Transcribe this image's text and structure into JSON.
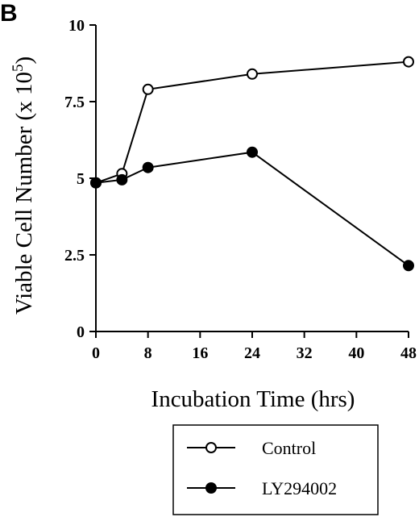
{
  "panel_label": "B",
  "chart_data": {
    "type": "line",
    "title": "",
    "xlabel": "Incubation Time (hrs)",
    "ylabel": "Viable Cell Number (x 10",
    "ylabel_sup": "5",
    "ylabel_tail": ")",
    "xlim": [
      0,
      48
    ],
    "ylim": [
      0,
      10
    ],
    "xticks": [
      0,
      8,
      16,
      24,
      32,
      40,
      48
    ],
    "xtick_labels": [
      "0",
      "8",
      "16",
      "24",
      "32",
      "40",
      "48"
    ],
    "yticks": [
      0,
      2.5,
      5,
      7.5,
      10
    ],
    "ytick_labels": [
      "0",
      "2.5",
      "5",
      "7.5",
      "10"
    ],
    "grid": false,
    "legend_position": "bottom-center",
    "series": [
      {
        "name": "Control",
        "marker": "open-circle",
        "x": [
          0,
          4,
          8,
          24,
          48
        ],
        "y": [
          4.85,
          5.15,
          7.9,
          8.4,
          8.8
        ]
      },
      {
        "name": "LY294002",
        "marker": "filled-circle",
        "x": [
          0,
          4,
          8,
          24,
          48
        ],
        "y": [
          4.85,
          4.95,
          5.35,
          5.85,
          2.15
        ]
      }
    ]
  }
}
